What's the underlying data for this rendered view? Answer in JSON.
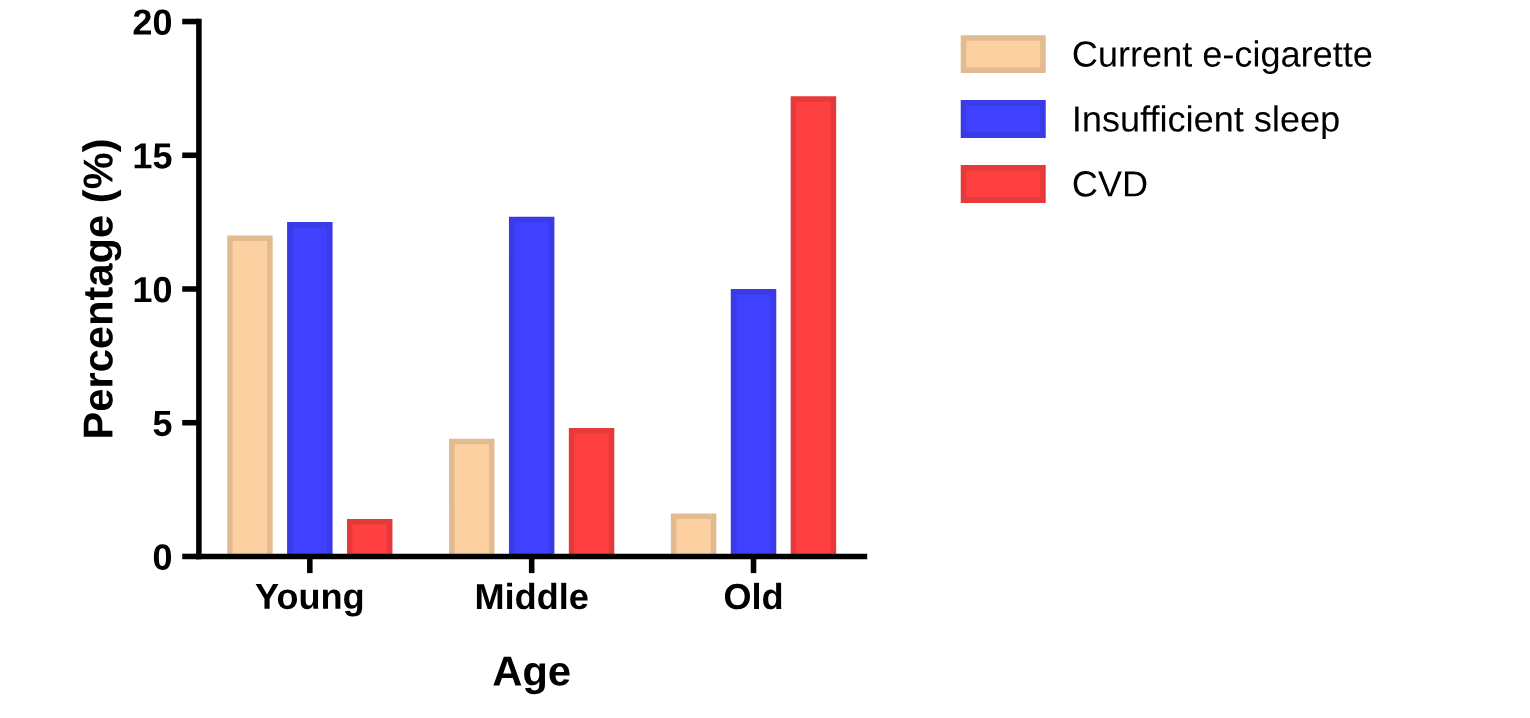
{
  "chart_data": {
    "type": "bar",
    "xlabel": "Age",
    "ylabel": "Percentage (%)",
    "categories": [
      "Young",
      "Middle",
      "Old"
    ],
    "series": [
      {
        "name": "Current e-cigarette",
        "color": "#fcd0a0",
        "values": [
          11.9,
          4.3,
          1.5
        ]
      },
      {
        "name": "Insufficient sleep",
        "color": "#4040ff",
        "values": [
          12.4,
          12.6,
          9.9
        ]
      },
      {
        "name": "CVD",
        "color": "#ff4040",
        "values": [
          1.3,
          4.7,
          17.1
        ]
      }
    ],
    "ylim": [
      0,
      20
    ],
    "yticks": [
      0,
      5,
      10,
      15,
      20
    ],
    "grid": false,
    "legend": "top right"
  }
}
